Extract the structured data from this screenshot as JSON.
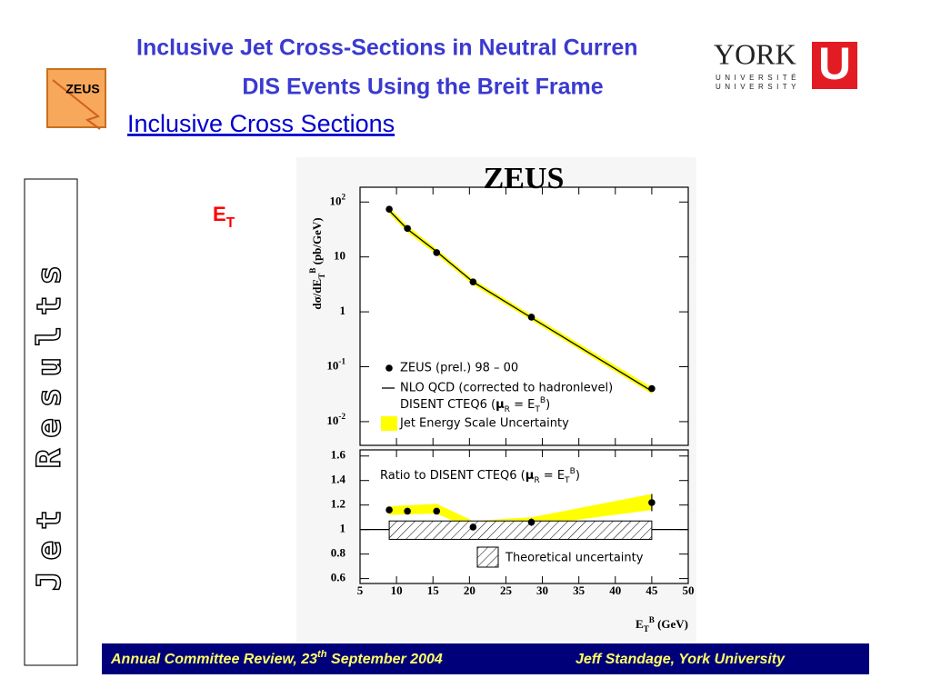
{
  "header": {
    "title_lines": [
      "Inclusive Jet Cross-Sections in Neutral Curren",
      "DIS Events Using the Breit Frame"
    ],
    "subtitle": "Inclusive Cross Sections"
  },
  "logos": {
    "zeus": "ZEUS",
    "york": "YORK",
    "york_line1": "UNIVERSITÉ",
    "york_line2": "UNIVERSITY",
    "york_mark": "U"
  },
  "side_label": "Jet Results",
  "panel_label": [
    [
      "E",
      ""
    ],
    [
      "T",
      "sub"
    ]
  ],
  "footer": {
    "left": [
      [
        "Annual Committee Review, 23",
        ""
      ],
      [
        "th",
        "sup"
      ],
      [
        " September 2004",
        ""
      ]
    ],
    "right": "Jeff Standage, York University"
  },
  "chart_data": [
    {
      "type": "scatter",
      "title": "ZEUS",
      "y_label": [
        [
          "dσ/dE",
          ""
        ],
        [
          "T",
          "sub"
        ],
        [
          "B",
          "sup"
        ],
        [
          " (pb/GeV)",
          ""
        ]
      ],
      "log_y": true,
      "xlim": [
        5,
        50
      ],
      "ylim": [
        0.0037,
        186
      ],
      "xticks": [
        5,
        10,
        15,
        20,
        25,
        30,
        35,
        40,
        45,
        50
      ],
      "yticks": [
        {
          "value": 100,
          "label": "10",
          "sup": "2"
        },
        10,
        1,
        {
          "value": 0.1,
          "label": "10",
          "sup": "-1"
        },
        {
          "value": 0.01,
          "label": "10",
          "sup": "-2"
        }
      ],
      "x": [
        9,
        11.5,
        15.5,
        20.5,
        28.5,
        45
      ],
      "series": [
        {
          "name": "Jet Energy Scale Uncertainty",
          "kind": "band",
          "color": "#ffff00",
          "lower": [
            62,
            28,
            11,
            3.1,
            0.7,
            0.032
          ],
          "upper": [
            80,
            37,
            14,
            3.9,
            0.88,
            0.042
          ]
        },
        {
          "name": "NLO QCD (corrected to hadronlevel)",
          "name_line2": [
            [
              "DISENT CTEQ6 (",
              ""
            ],
            [
              "μ",
              "b"
            ],
            [
              "R",
              "sub"
            ],
            [
              " = E",
              ""
            ],
            [
              "T",
              "sub"
            ],
            [
              "B",
              "sup"
            ],
            [
              ")",
              ""
            ]
          ],
          "kind": "line",
          "color": "#000000",
          "values": [
            70,
            32,
            12.5,
            3.5,
            0.78,
            0.036
          ]
        },
        {
          "name": "ZEUS (prel.) 98 – 00",
          "kind": "points",
          "color": "#000000",
          "values": [
            74,
            33,
            12,
            3.5,
            0.8,
            0.04
          ]
        }
      ]
    },
    {
      "type": "scatter",
      "annotation": [
        [
          "Ratio to  DISENT CTEQ6 (",
          ""
        ],
        [
          "μ",
          "b"
        ],
        [
          "R",
          "sub"
        ],
        [
          " = E",
          ""
        ],
        [
          "T",
          "sub"
        ],
        [
          "B",
          "sup"
        ],
        [
          ")",
          ""
        ]
      ],
      "x_label": [
        [
          "E",
          ""
        ],
        [
          "T",
          "sub"
        ],
        [
          "B",
          "sup"
        ],
        [
          " (GeV)",
          ""
        ]
      ],
      "xlim": [
        5,
        50
      ],
      "ylim": [
        0.56,
        1.65
      ],
      "xticks": [
        5,
        10,
        15,
        20,
        25,
        30,
        35,
        40,
        45,
        50
      ],
      "yticks": [
        0.6,
        0.8,
        1,
        1.2,
        1.4,
        1.6
      ],
      "reference": 1,
      "x": [
        9,
        11.5,
        15.5,
        20.5,
        28.5,
        45
      ],
      "series": [
        {
          "kind": "band",
          "color": "#ffff00",
          "x": [
            9,
            15.5,
            20.5,
            28.5,
            45
          ],
          "lower": [
            1.12,
            1.13,
            1.0,
            1.03,
            1.16
          ],
          "upper": [
            1.19,
            1.21,
            1.07,
            1.1,
            1.29
          ]
        },
        {
          "name": "Theoretical uncertainty",
          "kind": "hatched",
          "color": "#000000",
          "x": [
            9,
            45
          ],
          "lower": [
            0.92,
            0.92
          ],
          "upper": [
            1.07,
            1.07
          ]
        },
        {
          "kind": "points",
          "color": "#000000",
          "values": [
            1.16,
            1.15,
            1.15,
            1.02,
            1.06,
            1.22
          ],
          "errors": [
            null,
            null,
            null,
            null,
            0.03,
            0.07
          ]
        }
      ]
    }
  ]
}
